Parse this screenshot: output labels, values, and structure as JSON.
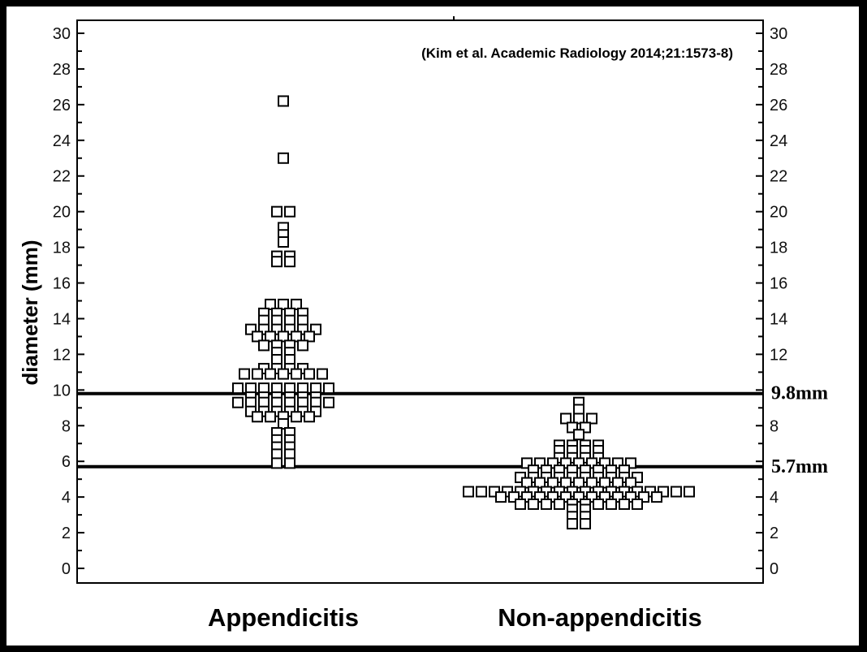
{
  "chart_data": {
    "type": "scatter",
    "subtype": "dot-plot",
    "ylabel": "diameter (mm)",
    "ylim": [
      0,
      30
    ],
    "yticks": [
      0,
      2,
      4,
      6,
      8,
      10,
      12,
      14,
      16,
      18,
      20,
      22,
      24,
      26,
      28,
      30
    ],
    "categories": [
      "Appendicitis",
      "Non-appendicitis"
    ],
    "annotation": "(Kim et al. Academic Radiology 2014;21:1573-8)",
    "marker": "open-square",
    "reference_lines": [
      {
        "value": 9.8,
        "label": "9.8mm"
      },
      {
        "value": 5.7,
        "label": "5.7mm"
      }
    ],
    "groups": [
      {
        "category": "Appendicitis",
        "rows": [
          {
            "value": 26.2,
            "count": 1
          },
          {
            "value": 23.0,
            "count": 1
          },
          {
            "value": 20.0,
            "count": 2
          },
          {
            "value": 19.1,
            "count": 1
          },
          {
            "value": 18.7,
            "count": 1
          },
          {
            "value": 18.3,
            "count": 1
          },
          {
            "value": 17.5,
            "count": 2
          },
          {
            "value": 17.2,
            "count": 2
          },
          {
            "value": 14.8,
            "count": 3
          },
          {
            "value": 14.3,
            "count": 4
          },
          {
            "value": 13.9,
            "count": 4
          },
          {
            "value": 13.4,
            "count": 6
          },
          {
            "value": 13.0,
            "count": 5
          },
          {
            "value": 12.5,
            "count": 4
          },
          {
            "value": 12.1,
            "count": 2
          },
          {
            "value": 11.7,
            "count": 2
          },
          {
            "value": 11.2,
            "count": 4
          },
          {
            "value": 10.9,
            "count": 7
          },
          {
            "value": 10.1,
            "count": 8
          },
          {
            "value": 9.6,
            "count": 6
          },
          {
            "value": 9.3,
            "count": 8
          },
          {
            "value": 8.8,
            "count": 6
          },
          {
            "value": 8.5,
            "count": 5
          },
          {
            "value": 8.1,
            "count": 1
          },
          {
            "value": 7.6,
            "count": 2
          },
          {
            "value": 7.2,
            "count": 2
          },
          {
            "value": 6.8,
            "count": 2
          },
          {
            "value": 6.4,
            "count": 2
          },
          {
            "value": 5.9,
            "count": 2
          }
        ]
      },
      {
        "category": "Non-appendicitis",
        "rows": [
          {
            "value": 9.3,
            "count": 1
          },
          {
            "value": 8.9,
            "count": 1
          },
          {
            "value": 8.4,
            "count": 3
          },
          {
            "value": 7.9,
            "count": 2
          },
          {
            "value": 7.5,
            "count": 1
          },
          {
            "value": 6.9,
            "count": 4
          },
          {
            "value": 6.6,
            "count": 4
          },
          {
            "value": 6.2,
            "count": 4
          },
          {
            "value": 5.9,
            "count": 9
          },
          {
            "value": 5.5,
            "count": 8
          },
          {
            "value": 5.1,
            "count": 10
          },
          {
            "value": 4.8,
            "count": 9
          },
          {
            "value": 4.3,
            "count": 18
          },
          {
            "value": 4.0,
            "count": 13
          },
          {
            "value": 3.6,
            "count": 10
          },
          {
            "value": 3.3,
            "count": 2
          },
          {
            "value": 2.9,
            "count": 2
          },
          {
            "value": 2.5,
            "count": 2
          }
        ]
      }
    ]
  }
}
